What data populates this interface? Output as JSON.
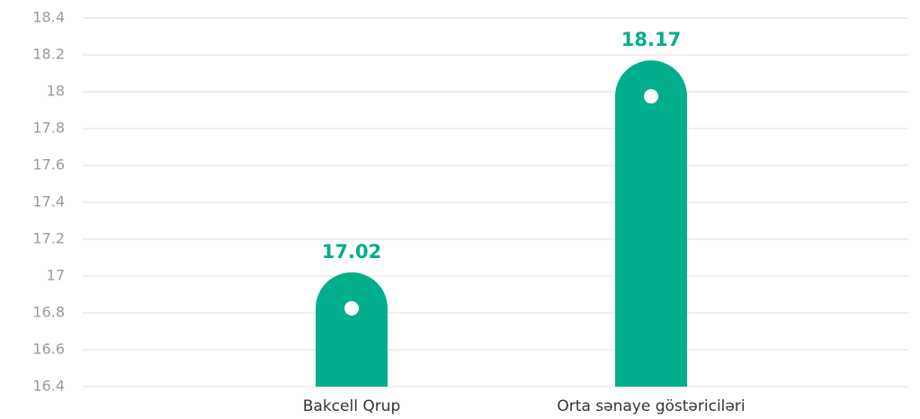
{
  "chart_data": {
    "type": "bar",
    "categories": [
      "Bakcell Qrup",
      "Orta sənaye göstəriciləri"
    ],
    "values": [
      17.02,
      18.17
    ],
    "color": "#00ae8c",
    "ylim": [
      16.4,
      18.4
    ],
    "yticks": [
      16.4,
      16.6,
      16.8,
      17,
      17.2,
      17.4,
      17.6,
      17.8,
      18,
      18.2,
      18.4
    ],
    "grid": true
  }
}
